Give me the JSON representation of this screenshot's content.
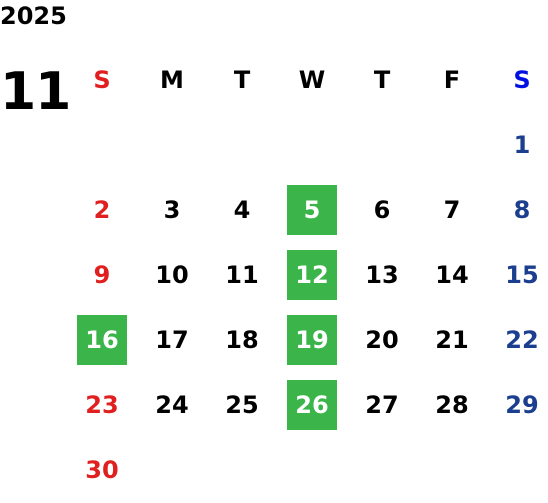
{
  "year": "2025",
  "month": "11",
  "weekdays": [
    "S",
    "M",
    "T",
    "W",
    "T",
    "F",
    "S"
  ],
  "weeks": [
    [
      "",
      "",
      "",
      "",
      "",
      "",
      "1"
    ],
    [
      "2",
      "3",
      "4",
      "5",
      "6",
      "7",
      "8"
    ],
    [
      "9",
      "10",
      "11",
      "12",
      "13",
      "14",
      "15"
    ],
    [
      "16",
      "17",
      "18",
      "19",
      "20",
      "21",
      "22"
    ],
    [
      "23",
      "24",
      "25",
      "26",
      "27",
      "28",
      "29"
    ],
    [
      "30",
      "",
      "",
      "",
      "",
      "",
      ""
    ]
  ],
  "highlighted": [
    "5",
    "12",
    "16",
    "19",
    "26"
  ],
  "colors": {
    "sunday": "#e02020",
    "saturday_header": "#0010e0",
    "saturday": "#1b3e8f",
    "weekday": "#000000",
    "highlight_bg": "#3bb54a",
    "highlight_text": "#ffffff"
  }
}
